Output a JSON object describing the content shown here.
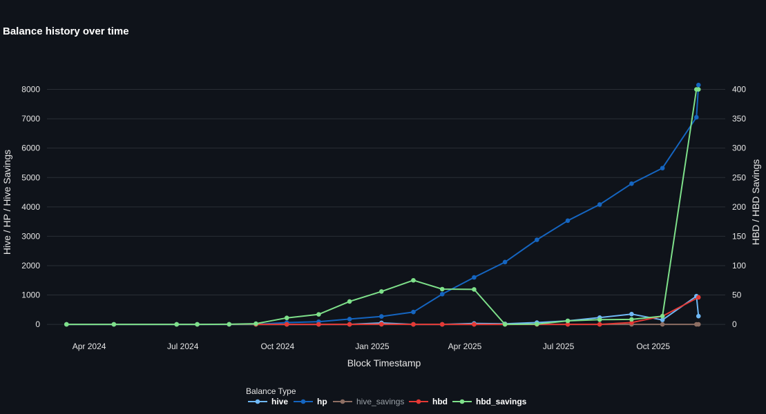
{
  "chart_data": {
    "type": "line",
    "title": "Balance history over time",
    "xlabel": "Block Timestamp",
    "ylabel_left": "Hive / HP / Hive Savings",
    "ylabel_right": "HBD / HBD Savings",
    "x_ticks": [
      "Apr 2024",
      "Jul 2024",
      "Oct 2024",
      "Jan 2025",
      "Apr 2025",
      "Jul 2025",
      "Oct 2025"
    ],
    "x_tick_dates": [
      "2024-04-01",
      "2024-07-01",
      "2024-10-01",
      "2025-01-01",
      "2025-04-01",
      "2025-07-01",
      "2025-10-01"
    ],
    "xlim": [
      "2024-02-20",
      "2025-12-10"
    ],
    "y_left_ticks": [
      0,
      1000,
      2000,
      3000,
      4000,
      5000,
      6000,
      7000,
      8000
    ],
    "y_left_lim": [
      -350,
      8600
    ],
    "y_right_ticks": [
      0,
      50,
      100,
      150,
      200,
      250,
      300,
      350,
      400
    ],
    "y_right_lim": [
      -17.5,
      430
    ],
    "grid": true,
    "legend_position": "bottom-center",
    "legend_title": "Balance Type",
    "series": [
      {
        "name": "hive",
        "axis": "left",
        "color": "#6fb8f5",
        "muted": false,
        "points": [
          {
            "x": "2024-03-10",
            "y": 0
          },
          {
            "x": "2024-04-25",
            "y": 0
          },
          {
            "x": "2024-06-25",
            "y": 0
          },
          {
            "x": "2024-07-15",
            "y": 0
          },
          {
            "x": "2024-08-15",
            "y": 0
          },
          {
            "x": "2024-09-10",
            "y": 0
          },
          {
            "x": "2024-10-10",
            "y": 0
          },
          {
            "x": "2024-11-10",
            "y": 0
          },
          {
            "x": "2024-12-10",
            "y": 0
          },
          {
            "x": "2025-01-10",
            "y": 50
          },
          {
            "x": "2025-02-10",
            "y": 0
          },
          {
            "x": "2025-03-10",
            "y": 0
          },
          {
            "x": "2025-04-10",
            "y": 30
          },
          {
            "x": "2025-05-10",
            "y": 20
          },
          {
            "x": "2025-06-10",
            "y": 60
          },
          {
            "x": "2025-07-10",
            "y": 120
          },
          {
            "x": "2025-08-10",
            "y": 230
          },
          {
            "x": "2025-09-10",
            "y": 350
          },
          {
            "x": "2025-10-10",
            "y": 150
          },
          {
            "x": "2025-11-12",
            "y": 960
          },
          {
            "x": "2025-11-14",
            "y": 280
          }
        ]
      },
      {
        "name": "hp",
        "axis": "left",
        "color": "#1565c0",
        "muted": false,
        "points": [
          {
            "x": "2024-03-10",
            "y": 0
          },
          {
            "x": "2024-04-25",
            "y": 0
          },
          {
            "x": "2024-06-25",
            "y": 0
          },
          {
            "x": "2024-07-15",
            "y": 0
          },
          {
            "x": "2024-08-15",
            "y": 0
          },
          {
            "x": "2024-09-10",
            "y": 0
          },
          {
            "x": "2024-10-10",
            "y": 60
          },
          {
            "x": "2024-11-10",
            "y": 90
          },
          {
            "x": "2024-12-10",
            "y": 180
          },
          {
            "x": "2025-01-10",
            "y": 270
          },
          {
            "x": "2025-02-10",
            "y": 420
          },
          {
            "x": "2025-03-10",
            "y": 1030
          },
          {
            "x": "2025-04-10",
            "y": 1600
          },
          {
            "x": "2025-05-10",
            "y": 2120
          },
          {
            "x": "2025-06-10",
            "y": 2880
          },
          {
            "x": "2025-07-10",
            "y": 3530
          },
          {
            "x": "2025-08-10",
            "y": 4080
          },
          {
            "x": "2025-09-10",
            "y": 4790
          },
          {
            "x": "2025-10-10",
            "y": 5320
          },
          {
            "x": "2025-11-12",
            "y": 7050
          },
          {
            "x": "2025-11-14",
            "y": 8150
          }
        ]
      },
      {
        "name": "hive_savings",
        "axis": "left",
        "color": "#8d6e63",
        "muted": true,
        "points": [
          {
            "x": "2024-03-10",
            "y": 0
          },
          {
            "x": "2024-04-25",
            "y": 0
          },
          {
            "x": "2024-06-25",
            "y": 0
          },
          {
            "x": "2024-07-15",
            "y": 0
          },
          {
            "x": "2024-08-15",
            "y": 0
          },
          {
            "x": "2024-09-10",
            "y": 0
          },
          {
            "x": "2024-10-10",
            "y": 0
          },
          {
            "x": "2024-11-10",
            "y": 0
          },
          {
            "x": "2024-12-10",
            "y": 0
          },
          {
            "x": "2025-01-10",
            "y": 0
          },
          {
            "x": "2025-02-10",
            "y": 0
          },
          {
            "x": "2025-03-10",
            "y": 0
          },
          {
            "x": "2025-04-10",
            "y": 0
          },
          {
            "x": "2025-05-10",
            "y": 0
          },
          {
            "x": "2025-06-10",
            "y": 0
          },
          {
            "x": "2025-07-10",
            "y": 0
          },
          {
            "x": "2025-08-10",
            "y": 0
          },
          {
            "x": "2025-09-10",
            "y": 0
          },
          {
            "x": "2025-10-10",
            "y": 0
          },
          {
            "x": "2025-11-12",
            "y": 0
          },
          {
            "x": "2025-11-14",
            "y": 0
          }
        ]
      },
      {
        "name": "hbd",
        "axis": "right",
        "color": "#e53935",
        "muted": false,
        "points": [
          {
            "x": "2024-09-10",
            "y": 0
          },
          {
            "x": "2024-10-10",
            "y": 0
          },
          {
            "x": "2024-11-10",
            "y": 0
          },
          {
            "x": "2024-12-10",
            "y": 0
          },
          {
            "x": "2025-01-10",
            "y": 0.5
          },
          {
            "x": "2025-02-10",
            "y": 0
          },
          {
            "x": "2025-03-10",
            "y": 0
          },
          {
            "x": "2025-04-10",
            "y": 0
          },
          {
            "x": "2025-05-10",
            "y": 0
          },
          {
            "x": "2025-06-10",
            "y": 0
          },
          {
            "x": "2025-07-10",
            "y": 0
          },
          {
            "x": "2025-08-10",
            "y": 0
          },
          {
            "x": "2025-09-10",
            "y": 3
          },
          {
            "x": "2025-10-10",
            "y": 14
          },
          {
            "x": "2025-11-14",
            "y": 46
          }
        ]
      },
      {
        "name": "hbd_savings",
        "axis": "right",
        "color": "#7ee08a",
        "muted": false,
        "points": [
          {
            "x": "2024-03-10",
            "y": 0
          },
          {
            "x": "2024-04-25",
            "y": 0
          },
          {
            "x": "2024-06-25",
            "y": 0
          },
          {
            "x": "2024-07-15",
            "y": 0
          },
          {
            "x": "2024-08-15",
            "y": 0.2
          },
          {
            "x": "2024-09-10",
            "y": 1.2
          },
          {
            "x": "2024-10-10",
            "y": 11
          },
          {
            "x": "2024-11-10",
            "y": 17
          },
          {
            "x": "2024-12-10",
            "y": 39
          },
          {
            "x": "2025-01-10",
            "y": 56
          },
          {
            "x": "2025-02-10",
            "y": 75
          },
          {
            "x": "2025-03-10",
            "y": 60
          },
          {
            "x": "2025-04-10",
            "y": 59.5
          },
          {
            "x": "2025-05-10",
            "y": 0
          },
          {
            "x": "2025-06-10",
            "y": 0.5
          },
          {
            "x": "2025-07-10",
            "y": 6
          },
          {
            "x": "2025-08-10",
            "y": 8
          },
          {
            "x": "2025-09-10",
            "y": 8.5
          },
          {
            "x": "2025-10-10",
            "y": 14
          },
          {
            "x": "2025-11-12",
            "y": 400
          },
          {
            "x": "2025-11-14",
            "y": 400
          }
        ]
      }
    ]
  }
}
